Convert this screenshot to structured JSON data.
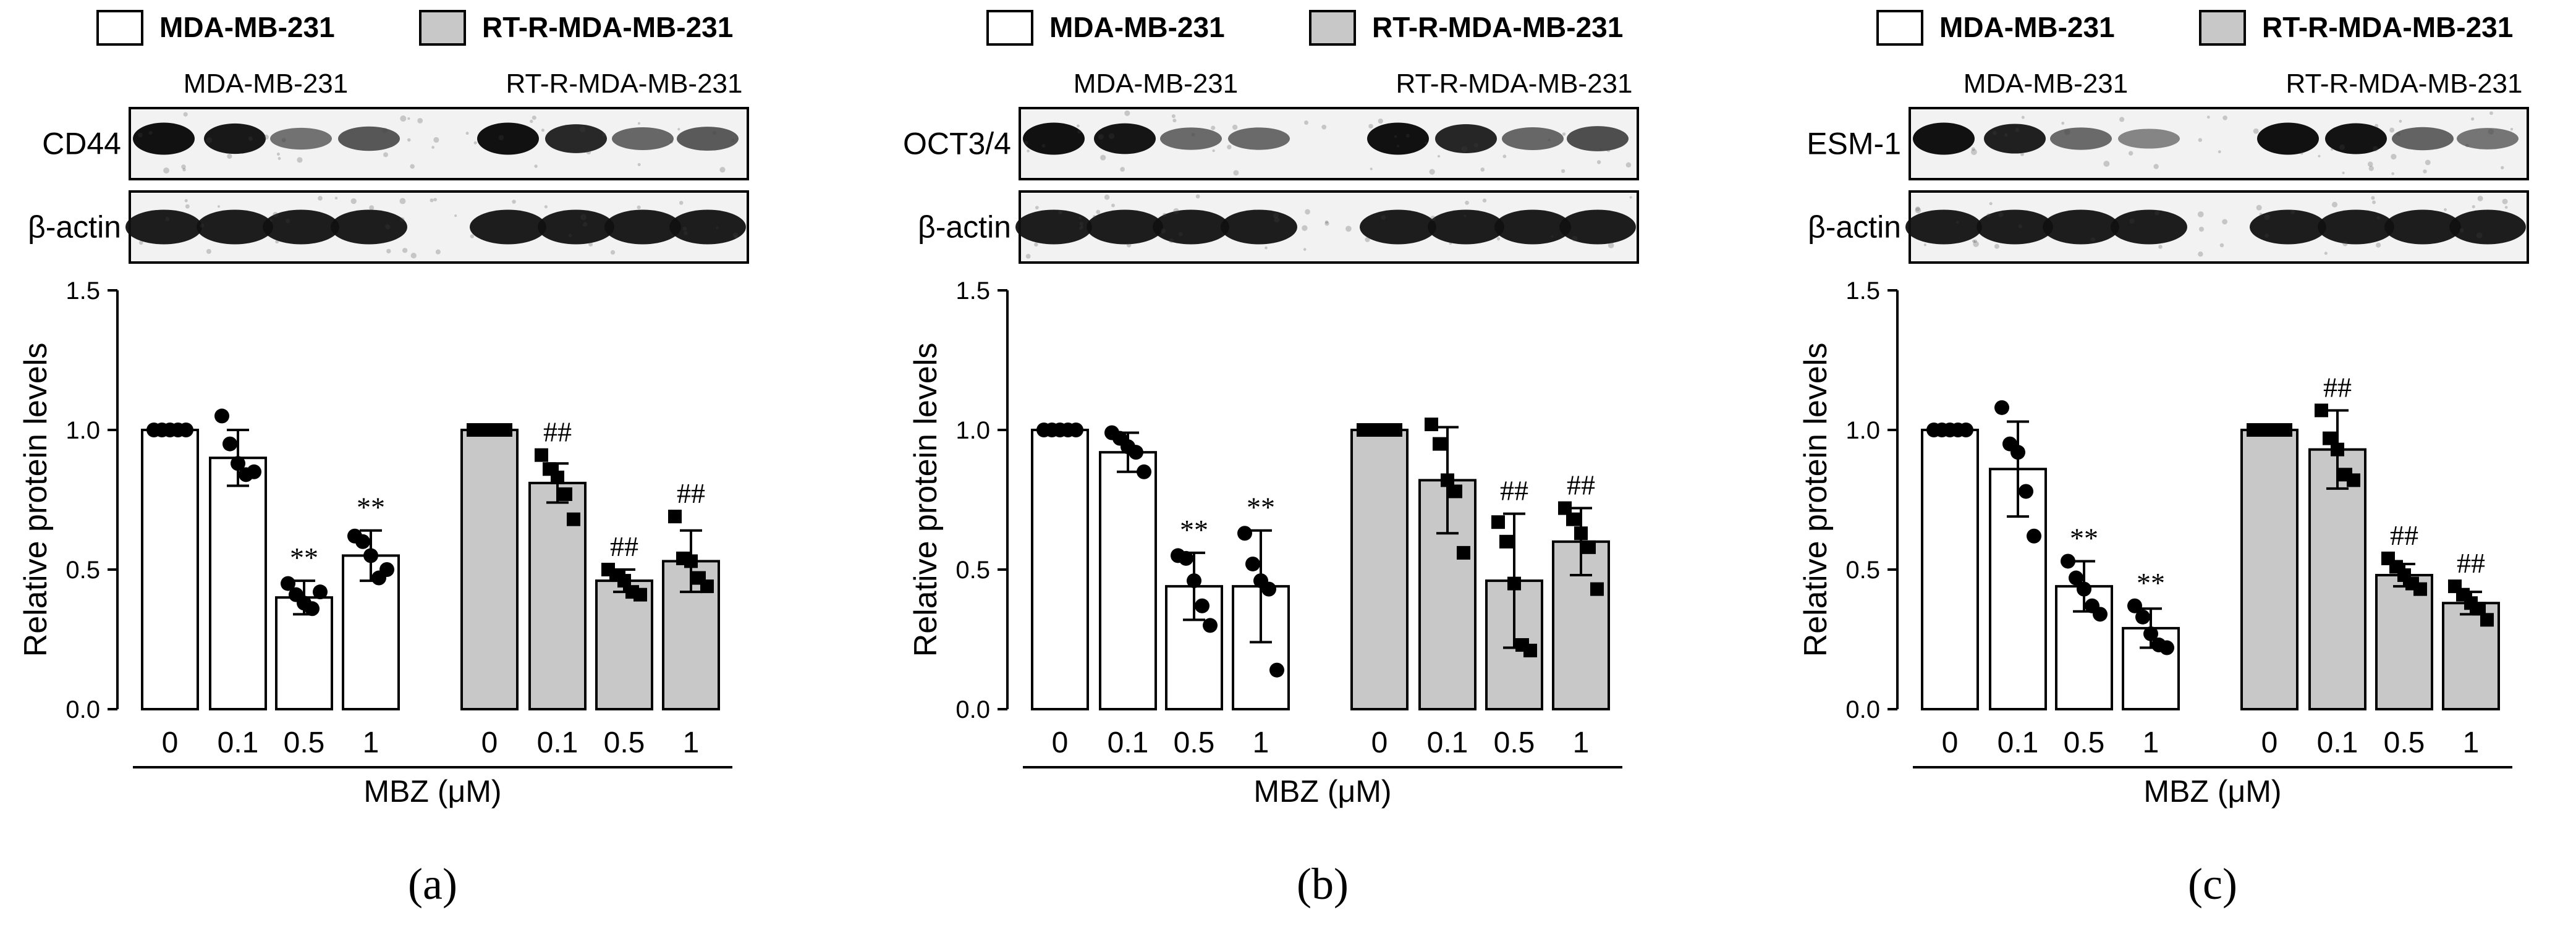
{
  "legend": [
    {
      "label": "MDA-MB-231",
      "color": "#ffffff"
    },
    {
      "label": "RT-R-MDA-MB-231",
      "color": "#c8c8c8"
    }
  ],
  "panels": [
    {
      "letter": "(a)",
      "protein": "CD44",
      "loading": "β-actin"
    },
    {
      "letter": "(b)",
      "protein": "OCT3/4",
      "loading": "β-actin"
    },
    {
      "letter": "(c)",
      "protein": "ESM-1",
      "loading": "β-actin"
    }
  ],
  "blot_headers": [
    "MDA-MB-231",
    "RT-R-MDA-MB-231"
  ],
  "group_colors": {
    "MDA-MB-231": "#ffffff",
    "RT-R-MDA-MB-231": "#c8c8c8"
  },
  "chart_data": [
    {
      "type": "bar",
      "panel": "(a)",
      "ylabel": "Relative protein levels",
      "xlabel": "MBZ (μM)",
      "ylim": [
        0,
        1.5
      ],
      "yticks": [
        "0.0",
        "0.5",
        "1.0",
        "1.5"
      ],
      "categories": [
        "0",
        "0.1",
        "0.5",
        "1"
      ],
      "series": [
        {
          "name": "MDA-MB-231",
          "marker": "circle",
          "values": [
            1.0,
            0.9,
            0.4,
            0.55
          ],
          "errors": [
            0.0,
            0.1,
            0.06,
            0.09
          ],
          "points": [
            [
              1.0,
              1.0,
              1.0,
              1.0,
              1.0
            ],
            [
              1.05,
              0.95,
              0.88,
              0.84,
              0.85
            ],
            [
              0.45,
              0.41,
              0.38,
              0.36,
              0.42
            ],
            [
              0.62,
              0.6,
              0.55,
              0.47,
              0.5
            ]
          ],
          "annotations": [
            "",
            "",
            "**",
            "**"
          ]
        },
        {
          "name": "RT-R-MDA-MB-231",
          "marker": "square",
          "values": [
            1.0,
            0.81,
            0.46,
            0.53
          ],
          "errors": [
            0.0,
            0.07,
            0.04,
            0.11
          ],
          "points": [
            [
              1.0,
              1.0,
              1.0,
              1.0,
              1.0
            ],
            [
              0.91,
              0.86,
              0.83,
              0.77,
              0.68
            ],
            [
              0.5,
              0.48,
              0.46,
              0.42,
              0.41
            ],
            [
              0.69,
              0.54,
              0.53,
              0.47,
              0.44
            ]
          ],
          "annotations": [
            "",
            "##",
            "##",
            "##"
          ]
        }
      ]
    },
    {
      "type": "bar",
      "panel": "(b)",
      "ylabel": "Relative protein levels",
      "xlabel": "MBZ (μM)",
      "ylim": [
        0,
        1.5
      ],
      "yticks": [
        "0.0",
        "0.5",
        "1.0",
        "1.5"
      ],
      "categories": [
        "0",
        "0.1",
        "0.5",
        "1"
      ],
      "series": [
        {
          "name": "MDA-MB-231",
          "marker": "circle",
          "values": [
            1.0,
            0.92,
            0.44,
            0.44
          ],
          "errors": [
            0.0,
            0.07,
            0.12,
            0.2
          ],
          "points": [
            [
              1.0,
              1.0,
              1.0,
              1.0,
              1.0
            ],
            [
              0.99,
              0.97,
              0.94,
              0.92,
              0.85
            ],
            [
              0.55,
              0.54,
              0.46,
              0.37,
              0.3
            ],
            [
              0.63,
              0.52,
              0.46,
              0.43,
              0.14
            ]
          ],
          "annotations": [
            "",
            "",
            "**",
            "**"
          ]
        },
        {
          "name": "RT-R-MDA-MB-231",
          "marker": "square",
          "values": [
            1.0,
            0.82,
            0.46,
            0.6
          ],
          "errors": [
            0.0,
            0.19,
            0.24,
            0.12
          ],
          "points": [
            [
              1.0,
              1.0,
              1.0,
              1.0,
              1.0
            ],
            [
              1.02,
              0.95,
              0.82,
              0.78,
              0.56
            ],
            [
              0.67,
              0.6,
              0.45,
              0.23,
              0.21
            ],
            [
              0.72,
              0.68,
              0.63,
              0.58,
              0.43
            ]
          ],
          "annotations": [
            "",
            "",
            "##",
            "##"
          ]
        }
      ]
    },
    {
      "type": "bar",
      "panel": "(c)",
      "ylabel": "Relative protein levels",
      "xlabel": "MBZ (μM)",
      "ylim": [
        0,
        1.5
      ],
      "yticks": [
        "0.0",
        "0.5",
        "1.0",
        "1.5"
      ],
      "categories": [
        "0",
        "0.1",
        "0.5",
        "1"
      ],
      "series": [
        {
          "name": "MDA-MB-231",
          "marker": "circle",
          "values": [
            1.0,
            0.86,
            0.44,
            0.29
          ],
          "errors": [
            0.0,
            0.17,
            0.09,
            0.07
          ],
          "points": [
            [
              1.0,
              1.0,
              1.0,
              1.0,
              1.0
            ],
            [
              1.08,
              0.95,
              0.92,
              0.78,
              0.62
            ],
            [
              0.53,
              0.47,
              0.43,
              0.37,
              0.34
            ],
            [
              0.37,
              0.33,
              0.27,
              0.23,
              0.22
            ]
          ],
          "annotations": [
            "",
            "",
            "**",
            "**"
          ]
        },
        {
          "name": "RT-R-MDA-MB-231",
          "marker": "square",
          "values": [
            1.0,
            0.93,
            0.48,
            0.38
          ],
          "errors": [
            0.0,
            0.14,
            0.04,
            0.04
          ],
          "points": [
            [
              1.0,
              1.0,
              1.0,
              1.0,
              1.0
            ],
            [
              1.07,
              0.97,
              0.93,
              0.84,
              0.82
            ],
            [
              0.54,
              0.51,
              0.48,
              0.45,
              0.43
            ],
            [
              0.44,
              0.41,
              0.38,
              0.36,
              0.32
            ]
          ],
          "annotations": [
            "",
            "##",
            "##",
            "##"
          ]
        }
      ]
    }
  ]
}
